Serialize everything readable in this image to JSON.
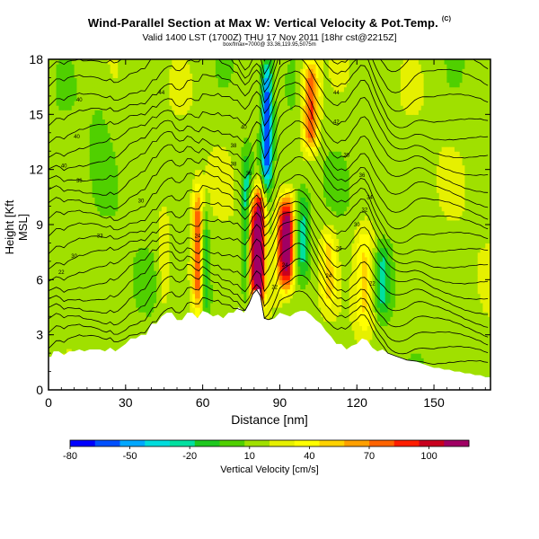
{
  "chart_data": {
    "type": "heatmap",
    "title": "Wind-Parallel Section at Max W: Vertical Velocity & Pot.Temp.",
    "title_mark": "(C)",
    "subtitle": "Valid 1400 LST (1700Z) THU 17 Nov 2011 [18hr cst@2215Z]",
    "subtitle_small": "box/fmax=7000@ 33.36,119.95,5075m",
    "xlabel": "Distance [nm]",
    "ylabel": "Height [Kft MSL]",
    "xlim": [
      0,
      172
    ],
    "ylim": [
      0,
      18
    ],
    "x_ticks": [
      0,
      30,
      60,
      90,
      120,
      150
    ],
    "y_ticks": [
      0,
      3,
      6,
      9,
      12,
      15,
      18
    ],
    "colorbar": {
      "label": "Vertical Velocity [cm/s]",
      "ticks": [
        -80,
        -50,
        -20,
        10,
        40,
        70,
        100
      ],
      "range": [
        -80,
        120
      ],
      "colors": [
        "#0000ff",
        "#0050ff",
        "#00a8ff",
        "#00dcdc",
        "#00e0a0",
        "#1ec81e",
        "#50d000",
        "#a0e000",
        "#e6f000",
        "#ffff00",
        "#ffd200",
        "#ffa000",
        "#ff6400",
        "#ff1e00",
        "#c8001e",
        "#a00064"
      ]
    },
    "terrain": {
      "x": [
        0,
        1,
        2,
        4,
        6,
        8,
        10,
        12,
        14,
        16,
        18,
        20,
        22,
        24,
        26,
        28,
        30,
        32,
        34,
        36,
        38,
        40,
        42,
        44,
        46,
        48,
        50,
        52,
        54,
        56,
        58,
        60,
        62,
        64,
        66,
        68,
        70,
        72,
        74,
        76,
        78,
        80,
        82,
        84,
        86,
        88,
        90,
        92,
        94,
        96,
        98,
        100,
        102,
        104,
        106,
        108,
        110,
        112,
        114,
        116,
        118,
        120,
        122,
        124,
        126,
        128,
        130,
        132,
        134,
        136,
        138,
        140,
        142,
        144,
        146,
        148,
        150,
        152,
        154,
        156,
        158,
        160,
        162,
        164,
        166,
        168,
        170,
        172
      ],
      "z": [
        1.8,
        1.8,
        2.1,
        2.1,
        1.9,
        2.1,
        2.1,
        2.2,
        2.1,
        2.2,
        2.2,
        2.2,
        2.1,
        2.3,
        2.1,
        2.3,
        2.5,
        2.8,
        2.8,
        3.0,
        3.0,
        3.6,
        3.6,
        4.0,
        4.2,
        4.2,
        3.8,
        3.8,
        4.2,
        4.2,
        3.9,
        4.3,
        4.2,
        4.0,
        4.1,
        3.9,
        4.2,
        4.2,
        4.5,
        4.2,
        4.7,
        5.4,
        5.5,
        3.9,
        3.8,
        3.9,
        4.2,
        4.1,
        4.0,
        4.2,
        4.3,
        4.3,
        4.1,
        3.8,
        3.6,
        3.2,
        2.9,
        2.5,
        2.5,
        2.2,
        2.4,
        2.5,
        2.8,
        2.7,
        2.3,
        2.1,
        2.2,
        2.0,
        1.9,
        1.8,
        1.7,
        1.6,
        1.6,
        1.5,
        1.4,
        1.3,
        1.2,
        1.2,
        1.1,
        1.1,
        1.0,
        1.0,
        0.9,
        0.9,
        0.8,
        0.8,
        0.7,
        0.7
      ]
    },
    "features": [
      {
        "x": 58,
        "half_width": 2.0,
        "ytop": 11.0,
        "ybot": 4.2,
        "value": 70
      },
      {
        "x": 61,
        "half_width": 1.5,
        "ytop": 10.0,
        "ybot": 4.0,
        "value": -30
      },
      {
        "x": 77,
        "half_width": 2.0,
        "ytop": 13.0,
        "ybot": 5.0,
        "value": -40
      },
      {
        "x": 82,
        "half_width": 2.2,
        "ytop": 11.0,
        "ybot": 4.5,
        "value": 120
      },
      {
        "x": 79,
        "half_width": 1.6,
        "ytop": 10.5,
        "ybot": 5.0,
        "value": 60
      },
      {
        "x": 85,
        "half_width": 2.0,
        "ytop": 18.0,
        "ybot": 11.0,
        "value": -80
      },
      {
        "x": 93,
        "half_width": 2.5,
        "ytop": 10.5,
        "ybot": 5.5,
        "value": 105
      },
      {
        "x": 90,
        "half_width": 1.8,
        "ytop": 10.5,
        "ybot": 5.5,
        "value": 45
      },
      {
        "x": 99,
        "half_width": 2.5,
        "ytop": 11.0,
        "ybot": 6.0,
        "value": -35
      },
      {
        "x": 102,
        "half_width": 3.0,
        "ytop": 18.0,
        "ybot": 13.0,
        "value": 75
      },
      {
        "x": 123,
        "half_width": 4.0,
        "ytop": 9.0,
        "ybot": 3.0,
        "value": 40
      },
      {
        "x": 130,
        "half_width": 3.0,
        "ytop": 8.0,
        "ybot": 4.0,
        "value": -30
      },
      {
        "x": 109,
        "half_width": 3.0,
        "ytop": 9.0,
        "ybot": 4.5,
        "value": 35
      },
      {
        "x": 45,
        "half_width": 2.0,
        "ytop": 10.0,
        "ybot": 4.5,
        "value": 20
      },
      {
        "x": 20,
        "half_width": 4.0,
        "ytop": 18.0,
        "ybot": 12.0,
        "value": -8
      }
    ],
    "contour_labels": [
      {
        "x": 44,
        "y": 16.2,
        "text": "44"
      },
      {
        "x": 112,
        "y": 16.2,
        "text": "44"
      },
      {
        "x": 12,
        "y": 15.8,
        "text": "40"
      },
      {
        "x": 112,
        "y": 14.6,
        "text": "42"
      },
      {
        "x": 11,
        "y": 13.8,
        "text": "40"
      },
      {
        "x": 76,
        "y": 14.3,
        "text": "40"
      },
      {
        "x": 72,
        "y": 13.3,
        "text": "38"
      },
      {
        "x": 116,
        "y": 12.8,
        "text": "38"
      },
      {
        "x": 6,
        "y": 12.2,
        "text": "40"
      },
      {
        "x": 72,
        "y": 12.3,
        "text": "38"
      },
      {
        "x": 78,
        "y": 11.8,
        "text": "36"
      },
      {
        "x": 12,
        "y": 11.4,
        "text": "36"
      },
      {
        "x": 122,
        "y": 11.7,
        "text": "36"
      },
      {
        "x": 125,
        "y": 10.5,
        "text": "34"
      },
      {
        "x": 36,
        "y": 10.3,
        "text": "30"
      },
      {
        "x": 123,
        "y": 9.8,
        "text": "32"
      },
      {
        "x": 20,
        "y": 8.4,
        "text": "33"
      },
      {
        "x": 120,
        "y": 9.0,
        "text": "30"
      },
      {
        "x": 10,
        "y": 7.3,
        "text": "30"
      },
      {
        "x": 58,
        "y": 8.4,
        "text": "24"
      },
      {
        "x": 113,
        "y": 7.7,
        "text": "26"
      },
      {
        "x": 92,
        "y": 6.8,
        "text": "24"
      },
      {
        "x": 109,
        "y": 6.2,
        "text": "24"
      },
      {
        "x": 5,
        "y": 6.4,
        "text": "22"
      },
      {
        "x": 88,
        "y": 5.6,
        "text": "22"
      },
      {
        "x": 126,
        "y": 5.8,
        "text": "22"
      }
    ]
  }
}
